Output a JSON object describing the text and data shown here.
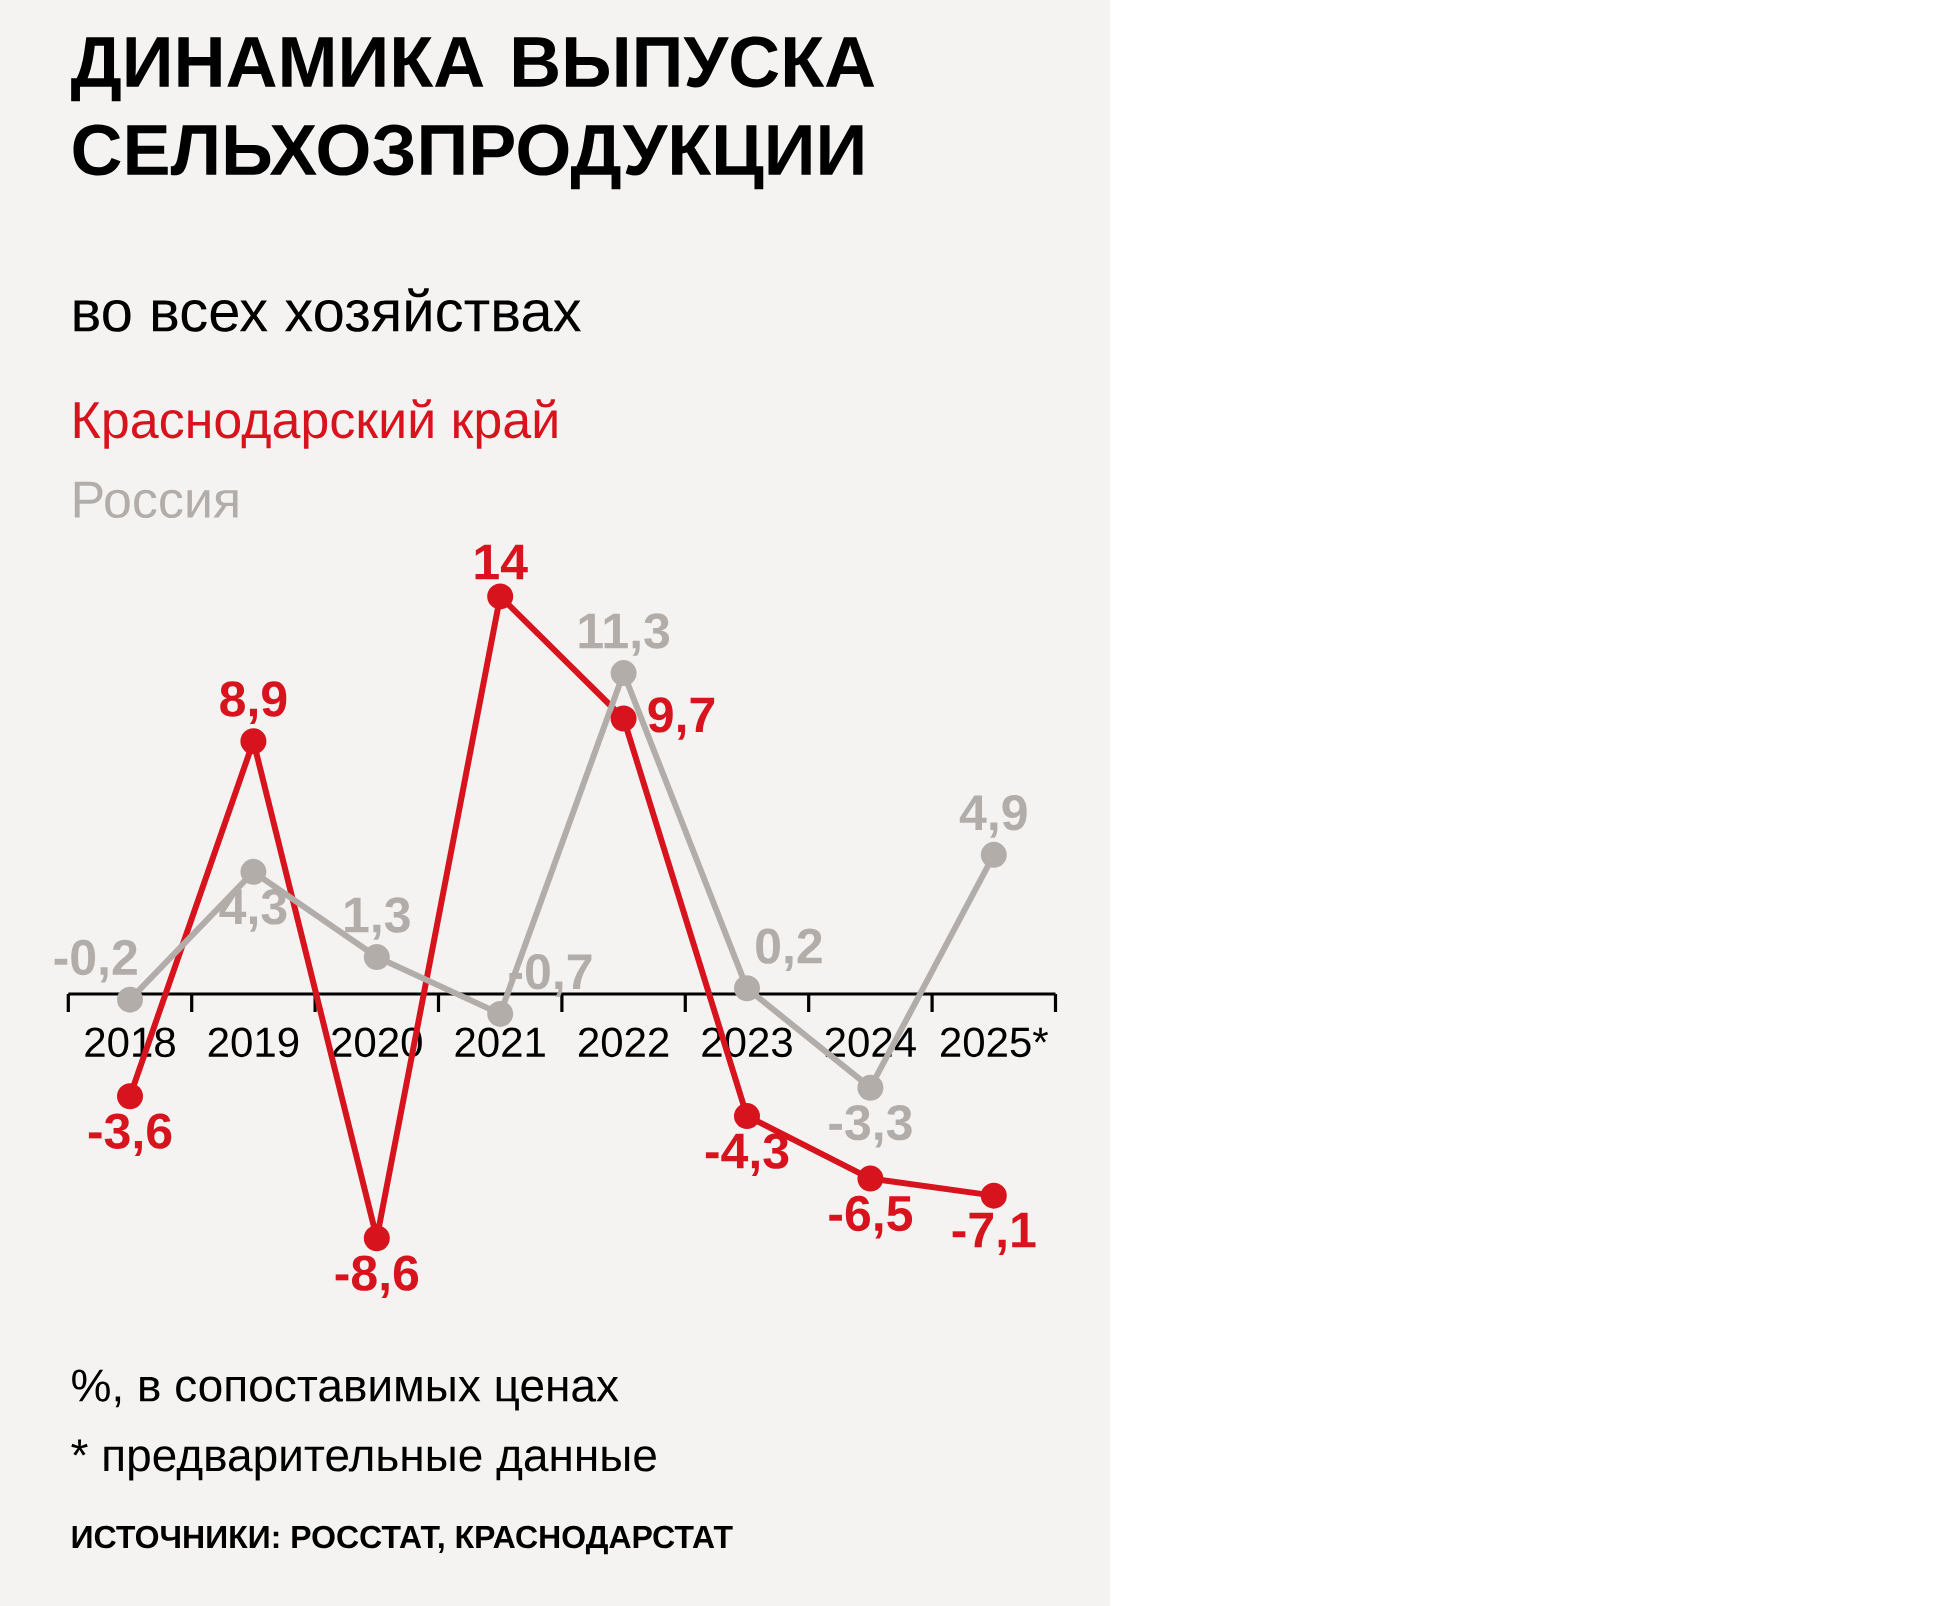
{
  "chart_data": {
    "type": "line",
    "title": "ДИНАМИКА ВЫПУСКА СЕЛЬХОЗПРОДУКЦИИ",
    "subtitle": "во всех хозяйствах",
    "categories": [
      "2018",
      "2019",
      "2020",
      "2021",
      "2022",
      "2023",
      "2024",
      "2025*"
    ],
    "series": [
      {
        "name": "Краснодарский край",
        "color": "#d7141d",
        "values": [
          -3.6,
          8.9,
          -8.6,
          14,
          9.7,
          -4.3,
          -6.5,
          -7.1
        ],
        "value_labels": [
          "-3,6",
          "8,9",
          "-8,6",
          "14",
          "9,7",
          "-4,3",
          "-6,5",
          "-7,1"
        ]
      },
      {
        "name": "Россия",
        "color": "#b3adaa",
        "values": [
          -0.2,
          4.3,
          1.3,
          -0.7,
          11.3,
          0.2,
          -3.3,
          4.9
        ],
        "value_labels": [
          "-0,2",
          "4,3",
          "1,3",
          "-0,7",
          "11,3",
          "0,2",
          "-3,3",
          "4,9"
        ]
      }
    ],
    "marker": "circle",
    "line_style": "solid",
    "annotations": [
      "%, в сопоставимых ценах",
      "* предварительные данные",
      "ИСТОЧНИКИ: РОССТАТ, КРАСНОДАРСТАТ"
    ]
  }
}
